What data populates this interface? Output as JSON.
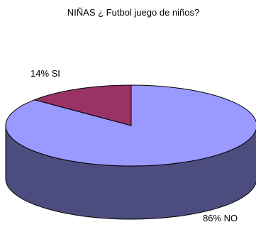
{
  "chart_data": {
    "type": "pie",
    "title": "NIÑAS ¿ Futbol juego de niños?",
    "slices": [
      {
        "label": "NO",
        "value": 86,
        "display": "86% NO",
        "color": "#9999ff",
        "side_color": "#4c4c7f"
      },
      {
        "label": "SI",
        "value": 14,
        "display": "14% SI",
        "color": "#993366",
        "side_color": "#4c1933"
      }
    ],
    "three_d": true,
    "legend": "none"
  }
}
